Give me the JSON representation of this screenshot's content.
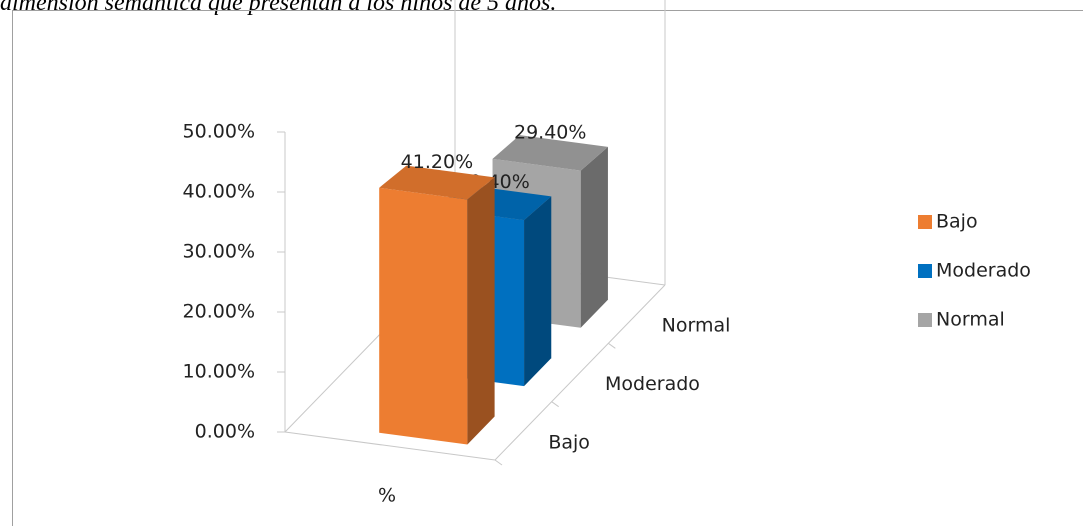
{
  "caption": "dimensión semántica que presentan a los niños de 5 años.",
  "chart_data": {
    "type": "bar3d",
    "categories": [
      "%"
    ],
    "series": [
      {
        "name": "Bajo",
        "color": "#ED7D31",
        "values": [
          41.2
        ],
        "value_labels": [
          "41.20%"
        ]
      },
      {
        "name": "Moderado",
        "color": "#0070C0",
        "values": [
          29.4
        ],
        "value_labels": [
          "29.40%"
        ]
      },
      {
        "name": "Normal",
        "color": "#A5A5A5",
        "values": [
          29.4
        ],
        "value_labels": [
          "29.40%"
        ]
      }
    ],
    "ylim": [
      0,
      50
    ],
    "yticks": [
      {
        "value": 0,
        "label": "0.00%"
      },
      {
        "value": 10,
        "label": "10.00%"
      },
      {
        "value": 20,
        "label": "20.00%"
      },
      {
        "value": 30,
        "label": "30.00%"
      },
      {
        "value": 40,
        "label": "40.00%"
      },
      {
        "value": 50,
        "label": "50.00%"
      }
    ],
    "legend": "right"
  }
}
